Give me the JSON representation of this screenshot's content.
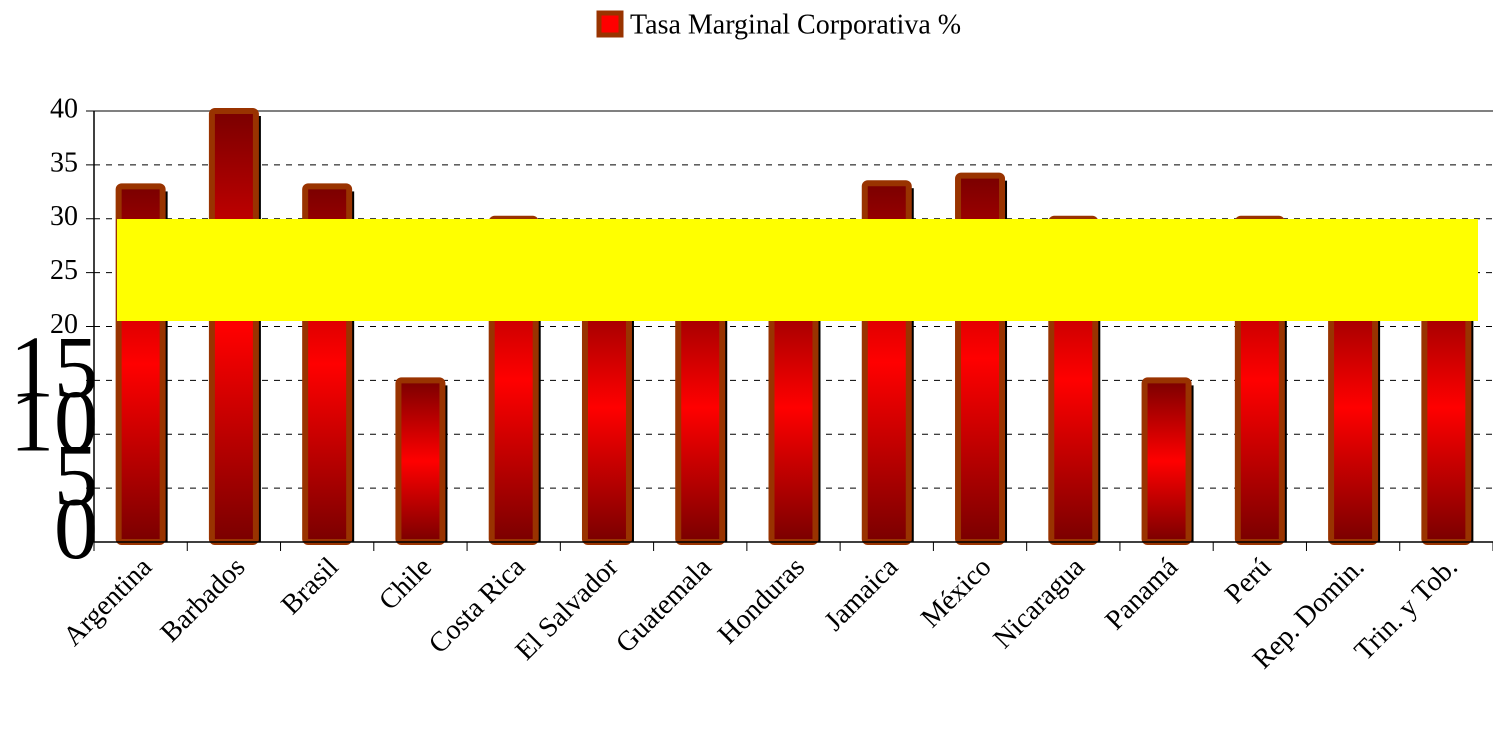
{
  "chart_data": {
    "type": "bar",
    "categories": [
      "Argentina",
      "Barbados",
      "Brasil",
      "Chile",
      "Costa Rica",
      "El Salvador",
      "Guatemala",
      "Honduras",
      "Jamaica",
      "México",
      "Nicaragua",
      "Panamá",
      "Perú",
      "Rep. Domin.",
      "Trin. y Tob."
    ],
    "series": [
      {
        "name": "Tasa Marginal Corporativa %",
        "color": "#ff0000",
        "values": [
          33,
          40,
          33,
          15,
          30,
          25,
          25,
          25,
          33.3,
          34,
          30,
          15,
          30,
          25,
          25
        ]
      }
    ],
    "ylim": [
      0,
      40
    ],
    "yticks": [
      0,
      5,
      10,
      15,
      20,
      25,
      30,
      35,
      40
    ],
    "grid": true
  }
}
